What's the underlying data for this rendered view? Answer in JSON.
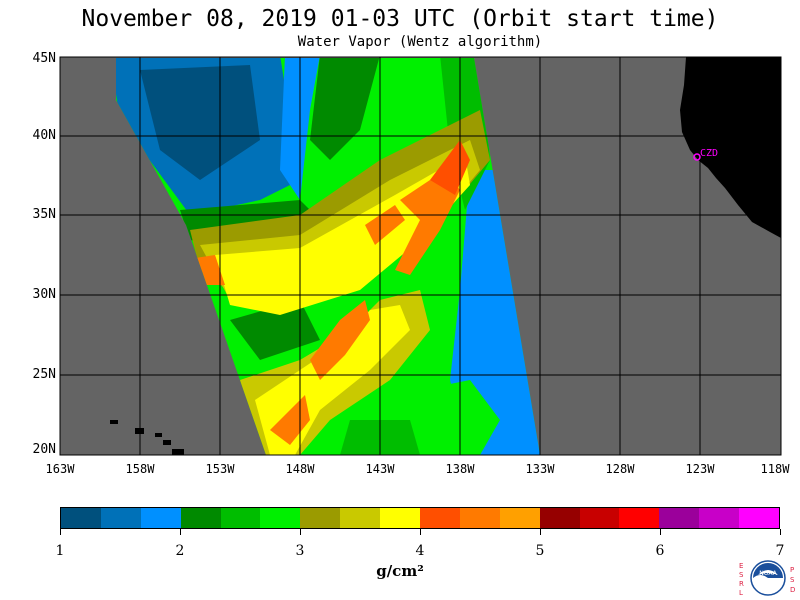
{
  "title": "November 08, 2019  01-03 UTC  (Orbit start time)",
  "subtitle": "Water Vapor (Wentz algorithm)",
  "map": {
    "lat_labels": [
      "45N",
      "40N",
      "35N",
      "30N",
      "25N",
      "20N"
    ],
    "lon_labels": [
      "163W",
      "158W",
      "153W",
      "148W",
      "143W",
      "138W",
      "133W",
      "128W",
      "123W",
      "118W"
    ],
    "station_label": "CZD",
    "colors": {
      "land_mask": "#646464",
      "coast_land": "#000000",
      "grid": "#000000",
      "station": "#ff00ff"
    }
  },
  "colorbar": {
    "colors": [
      "#00507d",
      "#0071b8",
      "#0090ff",
      "#008a00",
      "#00bd00",
      "#00f000",
      "#9b9b00",
      "#c9c900",
      "#ffff00",
      "#ff4f00",
      "#ff7a00",
      "#ffa000",
      "#960000",
      "#c80000",
      "#ff0000",
      "#9b009b",
      "#c800c8",
      "#ff00ff"
    ],
    "tick_labels": [
      "1",
      "2",
      "3",
      "4",
      "5",
      "6",
      "7"
    ],
    "units": "g/cm²"
  },
  "logo": {
    "left_letters": [
      "E",
      "S",
      "R",
      "L"
    ],
    "right_letters": [
      "P",
      "S",
      "D"
    ],
    "center_text": "NOAA"
  }
}
